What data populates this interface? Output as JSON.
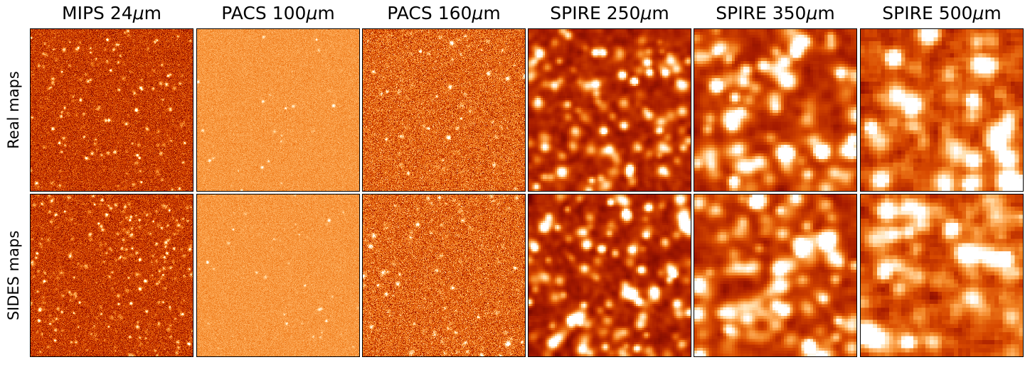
{
  "figure": {
    "columns": [
      {
        "band": "MIPS",
        "wavelength": "24",
        "unit_symbol": "μ",
        "unit_suffix": "m"
      },
      {
        "band": "PACS",
        "wavelength": "100",
        "unit_symbol": "μ",
        "unit_suffix": "m"
      },
      {
        "band": "PACS",
        "wavelength": "160",
        "unit_symbol": "μ",
        "unit_suffix": "m"
      },
      {
        "band": "SPIRE",
        "wavelength": "250",
        "unit_symbol": "μ",
        "unit_suffix": "m"
      },
      {
        "band": "SPIRE",
        "wavelength": "350",
        "unit_symbol": "μ",
        "unit_suffix": "m"
      },
      {
        "band": "SPIRE",
        "wavelength": "500",
        "unit_symbol": "μ",
        "unit_suffix": "m"
      }
    ],
    "rows": [
      {
        "label": "Real maps"
      },
      {
        "label": "SIDES maps"
      }
    ],
    "colormap": [
      "#6b0000",
      "#a81c00",
      "#d84a00",
      "#f08020",
      "#ffb060",
      "#ffe0b0",
      "#ffffff"
    ]
  }
}
